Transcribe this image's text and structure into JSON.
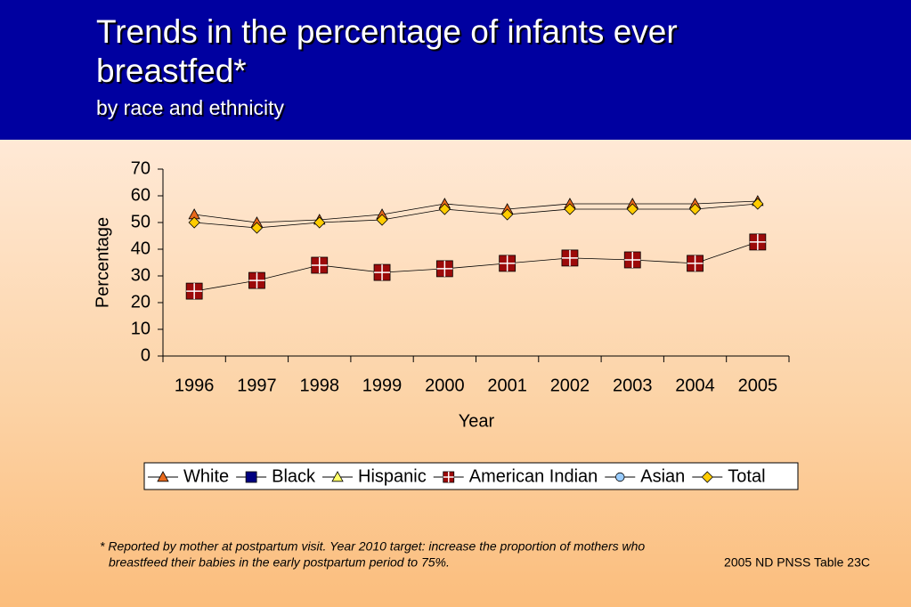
{
  "chart_data": {
    "type": "line",
    "title": "Trends in the percentage of infants ever breastfed*",
    "subtitle": "by race and ethnicity",
    "x_label": "Year",
    "y_label": "Percentage",
    "categories": [
      "1996",
      "1997",
      "1998",
      "1999",
      "2000",
      "2001",
      "2002",
      "2003",
      "2004",
      "2005"
    ],
    "series": [
      {
        "name": "White",
        "color": "#e8691c",
        "marker": "triangle",
        "values": [
          53,
          50,
          51,
          53,
          57,
          55,
          57,
          57,
          57,
          58
        ]
      },
      {
        "name": "Black",
        "color": "#000080",
        "marker": "square",
        "values": [
          null,
          null,
          null,
          null,
          null,
          null,
          null,
          null,
          null,
          null
        ]
      },
      {
        "name": "Hispanic",
        "color": "#ffff66",
        "marker": "triangle",
        "values": [
          null,
          null,
          null,
          null,
          null,
          null,
          null,
          null,
          null,
          null
        ]
      },
      {
        "name": "American Indian",
        "color": "#9c0a0a",
        "marker": "cross-square",
        "values": [
          24.3,
          28.3,
          34,
          31.3,
          32.7,
          34.7,
          36.7,
          36,
          34.7,
          42.7
        ]
      },
      {
        "name": "Asian",
        "color": "#99ccff",
        "marker": "circle",
        "values": [
          null,
          null,
          null,
          null,
          null,
          null,
          null,
          null,
          null,
          null
        ]
      },
      {
        "name": "Total",
        "color": "#ffcc00",
        "marker": "diamond",
        "values": [
          50,
          48,
          50,
          51,
          55,
          53,
          55,
          55,
          55,
          57
        ]
      }
    ],
    "ylim": [
      0,
      70
    ],
    "yticks": [
      0,
      10,
      20,
      30,
      40,
      50,
      60,
      70
    ],
    "legend": "bottom",
    "footnote": [
      "*  Reported by mother at postpartum visit.  Year 2010 target:  increase the proportion of mothers who",
      "breastfeed their babies in the early postpartum period to 75%."
    ],
    "source": "2005 ND PNSS Table 23C"
  }
}
